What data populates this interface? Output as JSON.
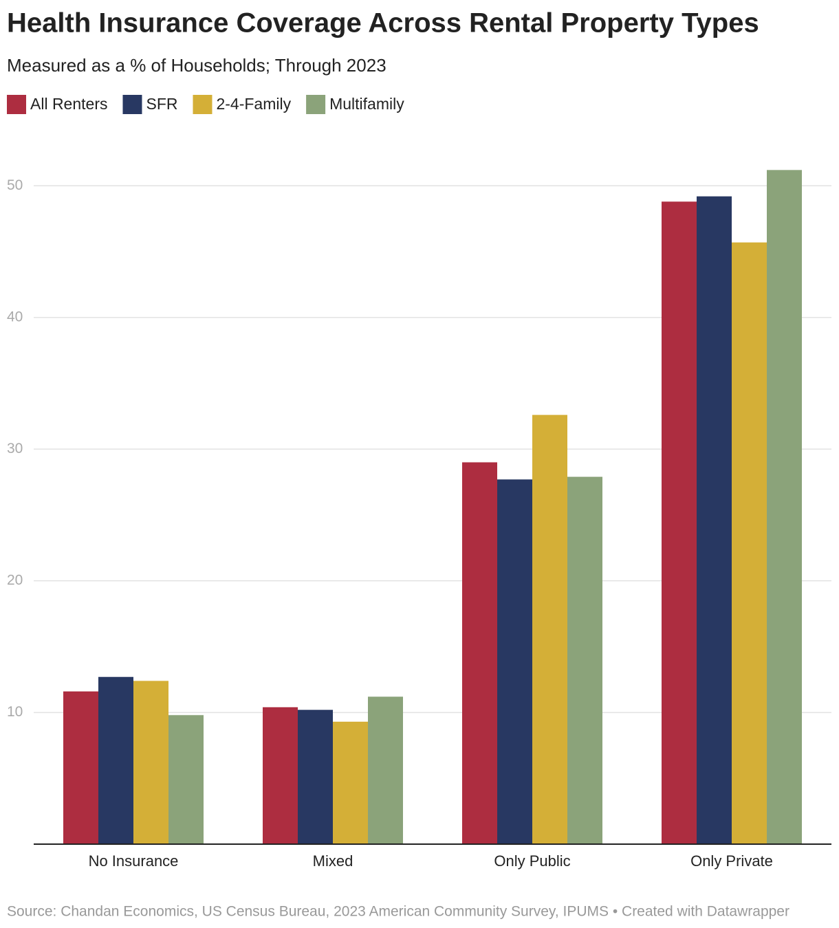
{
  "chart_data": {
    "type": "bar",
    "title": "Health Insurance Coverage Across Rental Property Types",
    "subtitle": "Measured as a % of Households; Through 2023",
    "categories": [
      "No Insurance",
      "Mixed",
      "Only Public",
      "Only Private"
    ],
    "series": [
      {
        "name": "All Renters",
        "color": "#ad2d40",
        "values": [
          11.6,
          10.4,
          29.0,
          48.8
        ]
      },
      {
        "name": "SFR",
        "color": "#283862",
        "values": [
          12.7,
          10.2,
          27.7,
          49.2
        ]
      },
      {
        "name": "2-4-Family",
        "color": "#d4af37",
        "values": [
          12.4,
          9.3,
          32.6,
          45.7
        ]
      },
      {
        "name": "Multifamily",
        "color": "#8ba37a",
        "values": [
          9.8,
          11.2,
          27.9,
          51.2
        ]
      }
    ],
    "ylim": [
      0,
      52
    ],
    "yticks": [
      10,
      20,
      30,
      40,
      50
    ],
    "grid": true,
    "source": "Source: Chandan Economics, US Census Bureau, 2023 American Community Survey, IPUMS • Created with Datawrapper"
  }
}
